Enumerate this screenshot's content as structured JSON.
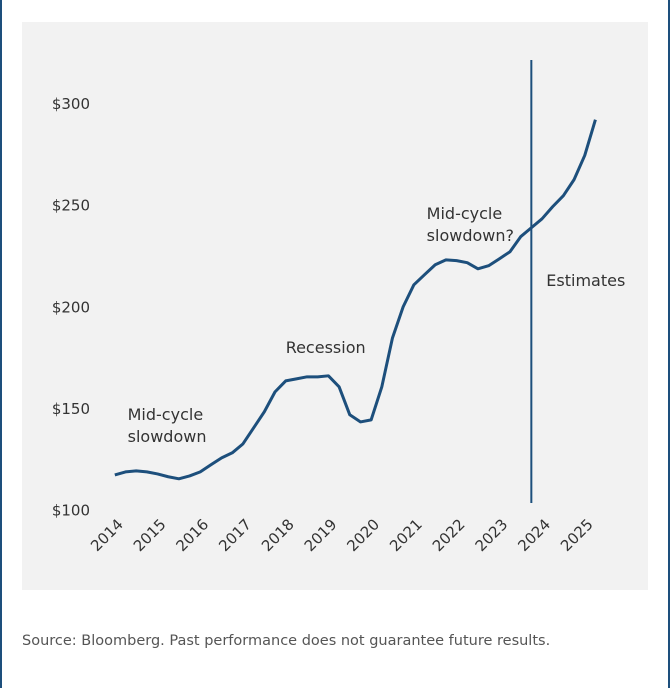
{
  "chart_data": {
    "type": "line",
    "x": [
      2014,
      2014.25,
      2014.5,
      2014.75,
      2015,
      2015.25,
      2015.5,
      2015.75,
      2016,
      2016.25,
      2016.5,
      2016.75,
      2017,
      2017.25,
      2017.5,
      2017.75,
      2018,
      2018.25,
      2018.5,
      2018.75,
      2019,
      2019.25,
      2019.5,
      2019.75,
      2020,
      2020.25,
      2020.5,
      2020.75,
      2021,
      2021.25,
      2021.5,
      2021.75,
      2022,
      2022.25,
      2022.5,
      2022.75,
      2023,
      2023.25,
      2023.5,
      2023.75,
      2024,
      2024.25,
      2024.5,
      2024.75,
      2025,
      2025.25
    ],
    "series": [
      {
        "color": "#1d4f7c",
        "values": [
          117.7,
          119.2,
          119.7,
          119.2,
          118.2,
          116.8,
          115.8,
          117.2,
          119.2,
          122.7,
          126.1,
          128.6,
          133.0,
          140.9,
          148.8,
          158.6,
          164.0,
          165.0,
          166.0,
          166.0,
          166.5,
          161.1,
          147.3,
          143.8,
          144.8,
          161.1,
          185.2,
          200.5,
          211.3,
          216.3,
          221.2,
          223.6,
          223.2,
          222.2,
          219.2,
          220.7,
          224.1,
          227.6,
          235.0,
          239.4,
          243.8,
          249.8,
          255.2,
          263.1,
          275.0,
          292.6
        ]
      }
    ],
    "xlim": [
      2013.7,
      2026.2
    ],
    "xticks": [
      2014,
      2015,
      2016,
      2017,
      2018,
      2019,
      2020,
      2021,
      2022,
      2023,
      2024,
      2025
    ],
    "ylim": [
      96,
      322
    ],
    "yticks": [
      {
        "value": 100,
        "label": "$100"
      },
      {
        "value": 150,
        "label": "$150"
      },
      {
        "value": 200,
        "label": "$200"
      },
      {
        "value": 250,
        "label": "$250"
      },
      {
        "value": 300,
        "label": "$300"
      }
    ],
    "vline": 2023.75,
    "annotations": [
      {
        "lines": [
          "Mid-cycle",
          "slowdown"
        ],
        "x": 2014.3,
        "y": 147
      },
      {
        "lines": [
          "Recession"
        ],
        "x": 2018,
        "y": 180
      },
      {
        "lines": [
          "Mid-cycle",
          "slowdown?"
        ],
        "x": 2021.3,
        "y": 246
      },
      {
        "lines": [
          "Estimates"
        ],
        "x": 2024.1,
        "y": 213
      }
    ],
    "source": "Source: Bloomberg. Past performance does not guarantee future results."
  }
}
